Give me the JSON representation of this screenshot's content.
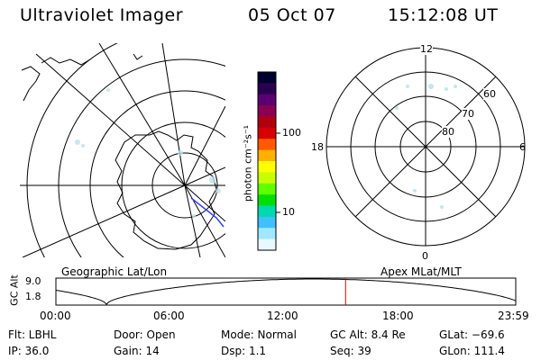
{
  "header": {
    "title": "Ultraviolet Imager",
    "date": "05 Oct 07",
    "time": "15:12:08 UT"
  },
  "colorbar": {
    "label": "photon cm⁻²s⁻¹",
    "ticks": [
      "100",
      "10"
    ],
    "colors": [
      "#000030",
      "#2a0050",
      "#5a0070",
      "#8a0050",
      "#b00010",
      "#d80000",
      "#ff5a00",
      "#ffb000",
      "#ffff00",
      "#c8ff00",
      "#60ff00",
      "#00e000",
      "#00d8b0",
      "#40c0ff",
      "#a0e8ff",
      "#e8f8ff"
    ]
  },
  "left_map": {
    "caption": "Geographic Lat/Lon"
  },
  "right_map": {
    "caption": "Apex MLat/MLT",
    "mlt_labels": {
      "top": "12",
      "left": "18",
      "right": "6",
      "bottom": "0"
    },
    "mlat_labels": [
      "60",
      "70",
      "80"
    ]
  },
  "altitude_plot": {
    "ylabel": "GC Alt",
    "yticks": [
      "9.0",
      "1.8"
    ],
    "xticks": [
      "00:00",
      "06:00",
      "12:00",
      "18:00",
      "23:59"
    ],
    "current_time_fraction": 0.63,
    "marker_color": "#e00000"
  },
  "status": {
    "flt": "Flt: LBHL",
    "ip": "IP: 36.0",
    "door": "Door: Open",
    "gain": "Gain: 14",
    "mode": "Mode: Normal",
    "dsp": "Dsp:    1.1",
    "gc_alt": "GC Alt: 8.4 Re",
    "seq": "Seq: 39",
    "glat": "GLat: −69.6",
    "glon": "GLon: 111.4"
  }
}
